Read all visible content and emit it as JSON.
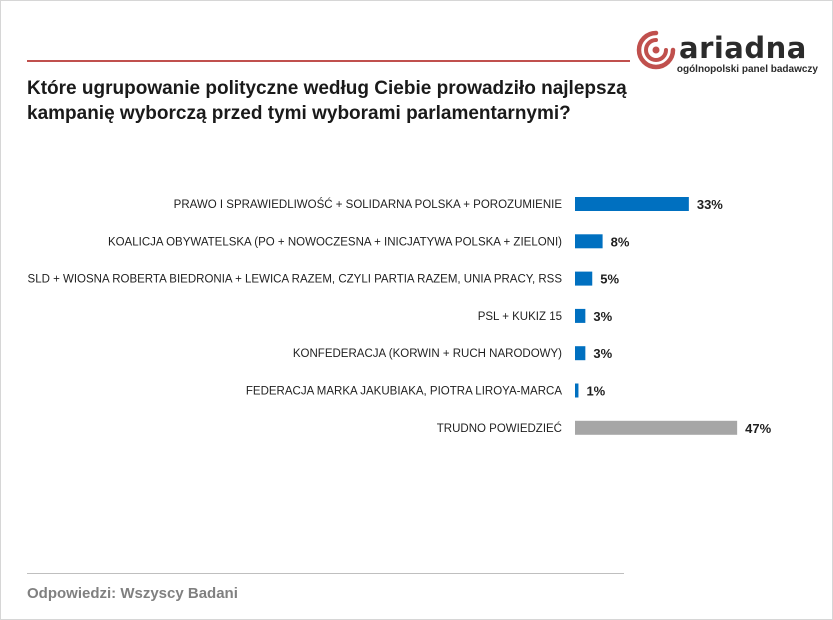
{
  "brand": {
    "name": "ariadna",
    "tagline": "ogólnopolski panel badawczy",
    "accent": "#c0504d"
  },
  "question": "Które ugrupowanie polityczne według Ciebie prowadziło najlepszą kampanię wyborczą przed tymi wyborami parlamentarnymi?",
  "footer": "Odpowiedzi:  Wszyscy Badani",
  "chart_data": {
    "type": "bar",
    "orientation": "horizontal",
    "title": "",
    "xlabel": "",
    "ylabel": "",
    "xlim": [
      0,
      100
    ],
    "grid": false,
    "legend": "none",
    "categories": [
      "PRAWO I SPRAWIEDLIWOŚĆ + SOLIDARNA POLSKA + POROZUMIENIE",
      "KOALICJA OBYWATELSKA (PO + NOWOCZESNA + INICJATYWA POLSKA + ZIELONI)",
      "SLD + WIOSNA ROBERTA BIEDRONIA + LEWICA RAZEM, CZYLI PARTIA RAZEM, UNIA PRACY, RSS",
      "PSL + KUKIZ 15",
      "KONFEDERACJA (KORWIN + RUCH NARODOWY)",
      "FEDERACJA MARKA JAKUBIAKA, PIOTRA LIROYA-MARCA",
      "TRUDNO POWIEDZIEĆ"
    ],
    "values": [
      33,
      8,
      5,
      3,
      3,
      1,
      47
    ],
    "value_labels": [
      "33%",
      "8%",
      "5%",
      "3%",
      "3%",
      "1%",
      "47%"
    ],
    "colors": [
      "#0070c0",
      "#0070c0",
      "#0070c0",
      "#0070c0",
      "#0070c0",
      "#0070c0",
      "#a6a6a6"
    ]
  }
}
